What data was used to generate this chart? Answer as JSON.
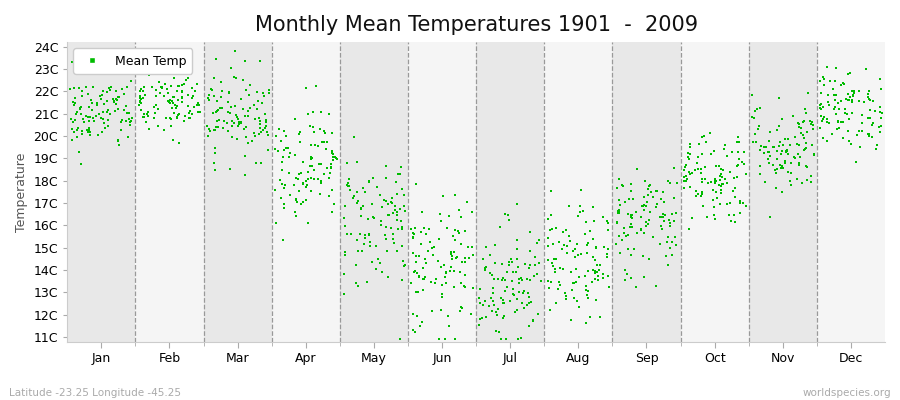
{
  "title": "Monthly Mean Temperatures 1901  -  2009",
  "ylabel": "Temperature",
  "subtitle_left": "Latitude -23.25 Longitude -45.25",
  "subtitle_right": "worldspecies.org",
  "ytick_labels": [
    "11C",
    "12C",
    "13C",
    "14C",
    "15C",
    "16C",
    "17C",
    "18C",
    "19C",
    "20C",
    "21C",
    "22C",
    "23C",
    "24C"
  ],
  "ytick_values": [
    11,
    12,
    13,
    14,
    15,
    16,
    17,
    18,
    19,
    20,
    21,
    22,
    23,
    24
  ],
  "ylim": [
    10.8,
    24.2
  ],
  "months": [
    "Jan",
    "Feb",
    "Mar",
    "Apr",
    "May",
    "Jun",
    "Jul",
    "Aug",
    "Sep",
    "Oct",
    "Nov",
    "Dec"
  ],
  "month_centers": [
    0.5,
    1.5,
    2.5,
    3.5,
    4.5,
    5.5,
    6.5,
    7.5,
    8.5,
    9.5,
    10.5,
    11.5
  ],
  "dashed_lines_x": [
    1.0,
    2.0,
    3.0,
    4.0,
    5.0,
    6.0,
    7.0,
    8.0,
    9.0,
    10.0,
    11.0
  ],
  "dot_color": "#00bb00",
  "dot_size": 3,
  "marker": "s",
  "legend_label": "Mean Temp",
  "bg_color": "#ffffff",
  "band_colors": [
    "#e8e8e8",
    "#f5f5f5"
  ],
  "title_fontsize": 15,
  "axis_label_fontsize": 9,
  "tick_fontsize": 9,
  "seed": 42,
  "n_years": 109,
  "monthly_means": [
    21.0,
    21.5,
    21.0,
    18.8,
    16.2,
    14.0,
    13.5,
    14.2,
    16.2,
    18.2,
    19.5,
    21.2
  ],
  "monthly_stds": [
    0.85,
    0.85,
    1.0,
    1.3,
    1.6,
    1.6,
    1.4,
    1.3,
    1.3,
    1.1,
    1.1,
    0.9
  ]
}
